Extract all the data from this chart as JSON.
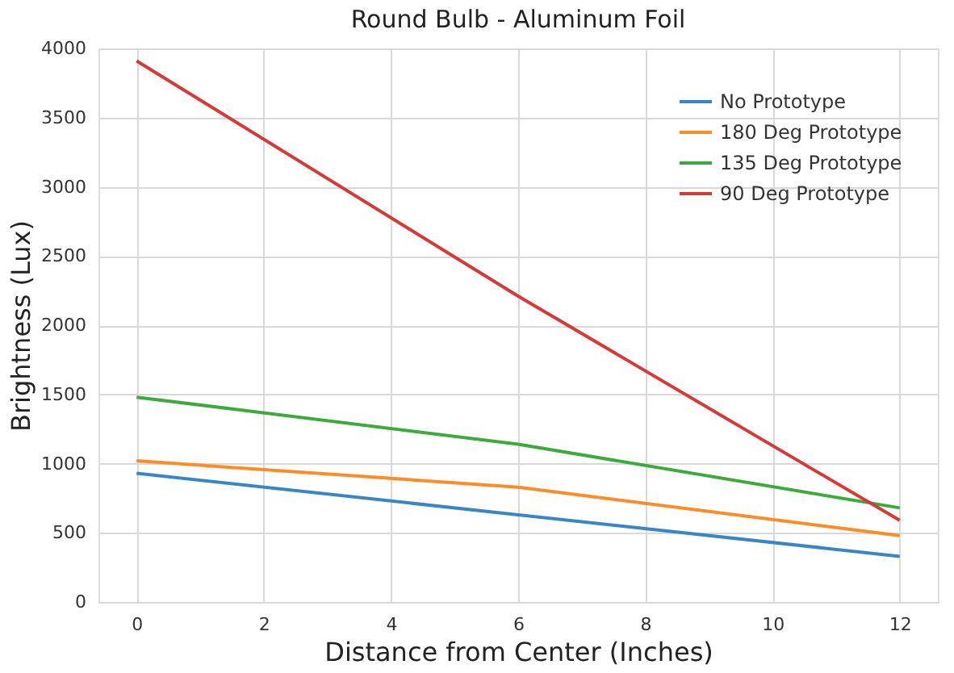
{
  "chart_data": {
    "type": "line",
    "title": "Round Bulb - Aluminum Foil",
    "xlabel": "Distance from Center (Inches)",
    "ylabel": "Brightness (Lux)",
    "x": [
      0,
      6,
      12
    ],
    "series": [
      {
        "name": "No Prototype",
        "color": "#3a85c5",
        "values": [
          930,
          630,
          330
        ]
      },
      {
        "name": "180 Deg Prototype",
        "color": "#ff8c28",
        "values": [
          1020,
          830,
          480
        ]
      },
      {
        "name": "135 Deg Prototype",
        "color": "#3caa3c",
        "values": [
          1480,
          1140,
          680
        ]
      },
      {
        "name": "90 Deg Prototype",
        "color": "#d43a3a",
        "values": [
          3910,
          2210,
          590
        ]
      }
    ],
    "xlim": [
      -0.6,
      12.6
    ],
    "xticks": [
      0,
      2,
      4,
      6,
      8,
      10,
      12
    ],
    "ylim": [
      0,
      4000
    ],
    "yticks": [
      0,
      500,
      1000,
      1500,
      2000,
      2500,
      3000,
      3500,
      4000
    ],
    "grid": true,
    "legend": "top right",
    "marker": "none",
    "line_style": "solid"
  }
}
